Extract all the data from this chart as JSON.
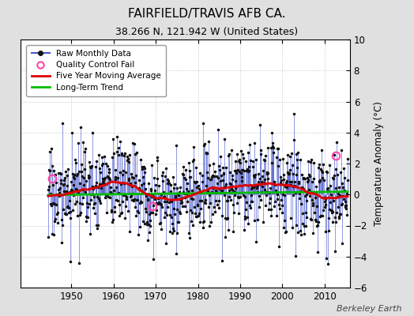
{
  "title": "FAIRFIELD/TRAVIS AFB CA.",
  "subtitle": "38.266 N, 121.942 W (United States)",
  "ylabel": "Temperature Anomaly (°C)",
  "credit": "Berkeley Earth",
  "xlim": [
    1938,
    2016
  ],
  "ylim": [
    -6,
    10
  ],
  "yticks": [
    -6,
    -4,
    -2,
    0,
    2,
    4,
    6,
    8,
    10
  ],
  "xticks": [
    1950,
    1960,
    1970,
    1980,
    1990,
    2000,
    2010
  ],
  "seed": 17,
  "n_months": 852,
  "start_year": 1944.5,
  "background_color": "#e0e0e0",
  "plot_bg_color": "#ffffff",
  "raw_line_color": "#4455cc",
  "raw_dot_color": "#111111",
  "moving_avg_color": "#dd0000",
  "trend_color": "#00bb00",
  "qc_fail_color": "#ff44aa",
  "qc_fail_times": [
    1945.5,
    1969.25,
    2012.75
  ],
  "qc_fail_values": [
    1.05,
    -0.75,
    2.5
  ],
  "trend_slope": 0.003,
  "trend_intercept": 0.08,
  "moving_avg_shape": [
    [
      1944,
      -0.15
    ],
    [
      1950,
      0.05
    ],
    [
      1955,
      0.35
    ],
    [
      1960,
      0.85
    ],
    [
      1965,
      0.55
    ],
    [
      1970,
      -0.15
    ],
    [
      1975,
      -0.35
    ],
    [
      1978,
      -0.15
    ],
    [
      1983,
      0.35
    ],
    [
      1988,
      0.45
    ],
    [
      1993,
      0.55
    ],
    [
      1998,
      0.65
    ],
    [
      2003,
      0.55
    ],
    [
      2007,
      0.15
    ],
    [
      2010,
      -0.25
    ],
    [
      2016,
      -0.15
    ]
  ],
  "legend_labels": [
    "Raw Monthly Data",
    "Quality Control Fail",
    "Five Year Moving Average",
    "Long-Term Trend"
  ]
}
